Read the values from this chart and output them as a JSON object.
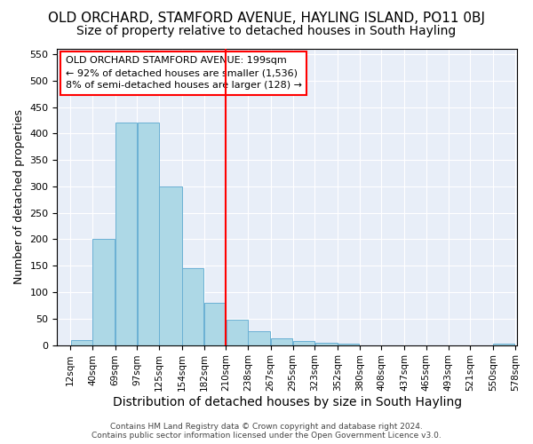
{
  "title": "OLD ORCHARD, STAMFORD AVENUE, HAYLING ISLAND, PO11 0BJ",
  "subtitle": "Size of property relative to detached houses in South Hayling",
  "xlabel": "Distribution of detached houses by size in South Hayling",
  "ylabel": "Number of detached properties",
  "bin_edges": [
    12,
    40,
    69,
    97,
    125,
    154,
    182,
    210,
    238,
    267,
    295,
    323,
    352,
    380,
    408,
    437,
    465,
    493,
    521,
    550,
    578
  ],
  "bin_labels": [
    "12sqm",
    "40sqm",
    "69sqm",
    "97sqm",
    "125sqm",
    "154sqm",
    "182sqm",
    "210sqm",
    "238sqm",
    "267sqm",
    "295sqm",
    "323sqm",
    "352sqm",
    "380sqm",
    "408sqm",
    "437sqm",
    "465sqm",
    "493sqm",
    "521sqm",
    "550sqm",
    "578sqm"
  ],
  "counts": [
    10,
    200,
    420,
    420,
    300,
    145,
    80,
    48,
    27,
    13,
    8,
    5,
    2,
    0,
    0,
    0,
    0,
    0,
    0,
    2
  ],
  "bar_color": "#add8e6",
  "bar_edge_color": "#6ab0d4",
  "vline_color": "red",
  "vline_index": 7,
  "annotation_box_text": "OLD ORCHARD STAMFORD AVENUE: 199sqm\n← 92% of detached houses are smaller (1,536)\n8% of semi-detached houses are larger (128) →",
  "ylim": [
    0,
    560
  ],
  "yticks": [
    0,
    50,
    100,
    150,
    200,
    250,
    300,
    350,
    400,
    450,
    500,
    550
  ],
  "footnote": "Contains HM Land Registry data © Crown copyright and database right 2024.\nContains public sector information licensed under the Open Government Licence v3.0.",
  "bg_color": "#e8eef8",
  "title_fontsize": 11,
  "subtitle_fontsize": 10,
  "xlabel_fontsize": 10,
  "ylabel_fontsize": 9
}
